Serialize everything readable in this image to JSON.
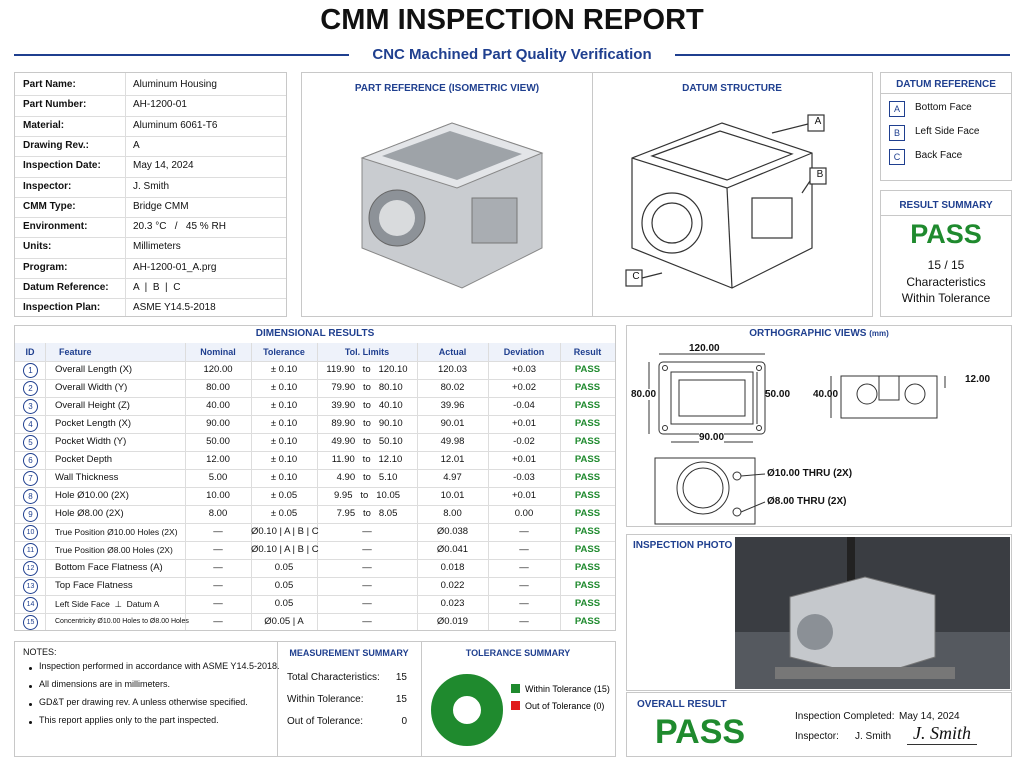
{
  "header": {
    "title": "CMM INSPECTION REPORT",
    "subtitle": "CNC Machined Part Quality Verification"
  },
  "info": {
    "rows": [
      [
        "Part Name:",
        "Aluminum Housing"
      ],
      [
        "Part Number:",
        "AH-1200-01"
      ],
      [
        "Material:",
        "Aluminum 6061-T6"
      ],
      [
        "Drawing Rev.:",
        "A"
      ],
      [
        "Inspection Date:",
        "May 14, 2024"
      ],
      [
        "Inspector:",
        "J. Smith"
      ],
      [
        "CMM Type:",
        "Bridge CMM"
      ],
      [
        "Environment:",
        "20.3 °C   /   45 % RH"
      ],
      [
        "Units:",
        "Millimeters"
      ],
      [
        "Program:",
        "AH-1200-01_A.prg"
      ],
      [
        "Datum Reference:",
        "A  |  B  |  C"
      ],
      [
        "Inspection Plan:",
        "ASME Y14.5-2018"
      ]
    ]
  },
  "part_reference": {
    "title": "PART REFERENCE (ISOMETRIC VIEW)"
  },
  "datum_structure": {
    "title": "DATUM STRUCTURE",
    "labels": [
      "A",
      "B",
      "C"
    ]
  },
  "datum_reference": {
    "title": "DATUM REFERENCE",
    "items": [
      [
        "A",
        "Bottom Face"
      ],
      [
        "B",
        "Left Side Face"
      ],
      [
        "C",
        "Back Face"
      ]
    ]
  },
  "result_summary": {
    "title": "RESULT SUMMARY",
    "result": "PASS",
    "count": "15 / 15",
    "lines": [
      "Characteristics",
      "Within Tolerance"
    ]
  },
  "dimensional": {
    "title": "DIMENSIONAL RESULTS",
    "headers": [
      "ID",
      "Feature",
      "Nominal",
      "Tolerance",
      "Tol. Limits",
      "Actual",
      "Deviation",
      "Result"
    ],
    "rows": [
      [
        "1",
        "Overall Length (X)",
        "120.00",
        "± 0.10",
        "119.90   to   120.10",
        "120.03",
        "+0.03",
        "PASS"
      ],
      [
        "2",
        "Overall Width (Y)",
        "80.00",
        "± 0.10",
        "79.90   to   80.10",
        "80.02",
        "+0.02",
        "PASS"
      ],
      [
        "3",
        "Overall Height (Z)",
        "40.00",
        "± 0.10",
        "39.90   to   40.10",
        "39.96",
        "-0.04",
        "PASS"
      ],
      [
        "4",
        "Pocket Length (X)",
        "90.00",
        "± 0.10",
        "89.90   to   90.10",
        "90.01",
        "+0.01",
        "PASS"
      ],
      [
        "5",
        "Pocket Width (Y)",
        "50.00",
        "± 0.10",
        "49.90   to   50.10",
        "49.98",
        "-0.02",
        "PASS"
      ],
      [
        "6",
        "Pocket Depth",
        "12.00",
        "± 0.10",
        "11.90   to   12.10",
        "12.01",
        "+0.01",
        "PASS"
      ],
      [
        "7",
        "Wall Thickness",
        "5.00",
        "± 0.10",
        "4.90   to   5.10",
        "4.97",
        "-0.03",
        "PASS"
      ],
      [
        "8",
        "Hole Ø10.00 (2X)",
        "10.00",
        "± 0.05",
        "9.95   to   10.05",
        "10.01",
        "+0.01",
        "PASS"
      ],
      [
        "9",
        "Hole Ø8.00 (2X)",
        "8.00",
        "± 0.05",
        "7.95   to   8.05",
        "8.00",
        "0.00",
        "PASS"
      ],
      [
        "10",
        "True Position Ø10.00 Holes (2X)",
        "—",
        "Ø0.10 | A | B | C",
        "—",
        "Ø0.038",
        "—",
        "PASS"
      ],
      [
        "11",
        "True Position Ø8.00 Holes (2X)",
        "—",
        "Ø0.10 | A | B | C",
        "—",
        "Ø0.041",
        "—",
        "PASS"
      ],
      [
        "12",
        "Bottom Face Flatness (A)",
        "—",
        "0.05",
        "—",
        "0.018",
        "—",
        "PASS"
      ],
      [
        "13",
        "Top Face Flatness",
        "—",
        "0.05",
        "—",
        "0.022",
        "—",
        "PASS"
      ],
      [
        "14",
        "Left Side Face  ⊥  Datum A",
        "—",
        "0.05",
        "—",
        "0.023",
        "—",
        "PASS"
      ],
      [
        "15",
        "Concentricity Ø10.00 Holes to Ø8.00 Holes",
        "—",
        "Ø0.05 | A",
        "—",
        "Ø0.019",
        "—",
        "PASS"
      ]
    ]
  },
  "orthographic": {
    "title": "ORTHOGRAPHIC VIEWS",
    "unit": "(mm)",
    "dims": [
      "120.00",
      "80.00",
      "50.00",
      "90.00",
      "40.00",
      "12.00",
      "Ø10.00 THRU (2X)",
      "Ø8.00 THRU (2X)"
    ]
  },
  "inspection_photo": {
    "title": "INSPECTION PHOTO"
  },
  "notes": {
    "title": "NOTES:",
    "items": [
      "Inspection performed in accordance with ASME Y14.5-2018.",
      "All dimensions are in millimeters.",
      "GD&T per drawing rev. A unless otherwise specified.",
      "This report applies only to the part inspected."
    ]
  },
  "measurement_summary": {
    "title": "MEASUREMENT SUMMARY",
    "rows": [
      [
        "Total Characteristics:",
        "15"
      ],
      [
        "Within Tolerance:",
        "15"
      ],
      [
        "Out of Tolerance:",
        "0"
      ]
    ]
  },
  "tolerance_summary": {
    "title": "TOLERANCE SUMMARY",
    "slices": [
      {
        "label": "Within Tolerance (15)",
        "value": 15,
        "color": "#1f8a2e"
      },
      {
        "label": "Out of Tolerance (0)",
        "value": 0,
        "color": "#e01b1b"
      }
    ]
  },
  "overall": {
    "title": "OVERALL RESULT",
    "result": "PASS",
    "completed_label": "Inspection Completed:",
    "date": "May 14, 2024",
    "inspector_label": "Inspector:",
    "inspector": "J. Smith",
    "signature": "J. Smith"
  }
}
